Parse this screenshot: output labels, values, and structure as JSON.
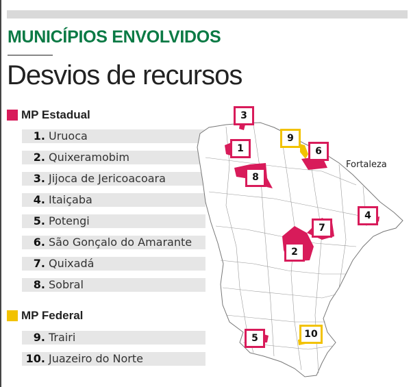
{
  "header": {
    "kicker": "MUNICÍPIOS ENVOLVIDOS",
    "title": "Desvios de recursos"
  },
  "colors": {
    "estadual": "#d81b5a",
    "federal": "#f2c200",
    "kicker": "#0b7a45"
  },
  "groups": [
    {
      "label": "MP Estadual",
      "items": [
        {
          "num": "1.",
          "name": "Uruoca"
        },
        {
          "num": "2.",
          "name": "Quixeramobim"
        },
        {
          "num": "3.",
          "name": "Jijoca de Jericoacoara"
        },
        {
          "num": "4.",
          "name": "Itaiçaba"
        },
        {
          "num": "5.",
          "name": "Potengi"
        },
        {
          "num": "6.",
          "name": "São Gonçalo do Amarante"
        },
        {
          "num": "7.",
          "name": "Quixadá"
        },
        {
          "num": "8.",
          "name": "Sobral"
        }
      ]
    },
    {
      "label": "MP Federal",
      "items": [
        {
          "num": "9.",
          "name": "Trairi"
        },
        {
          "num": "10.",
          "name": "Juazeiro do Norte"
        }
      ]
    }
  ],
  "map": {
    "city_label": "Fortaleza",
    "markers": [
      "1",
      "2",
      "3",
      "4",
      "5",
      "6",
      "7",
      "8",
      "9",
      "10"
    ]
  }
}
